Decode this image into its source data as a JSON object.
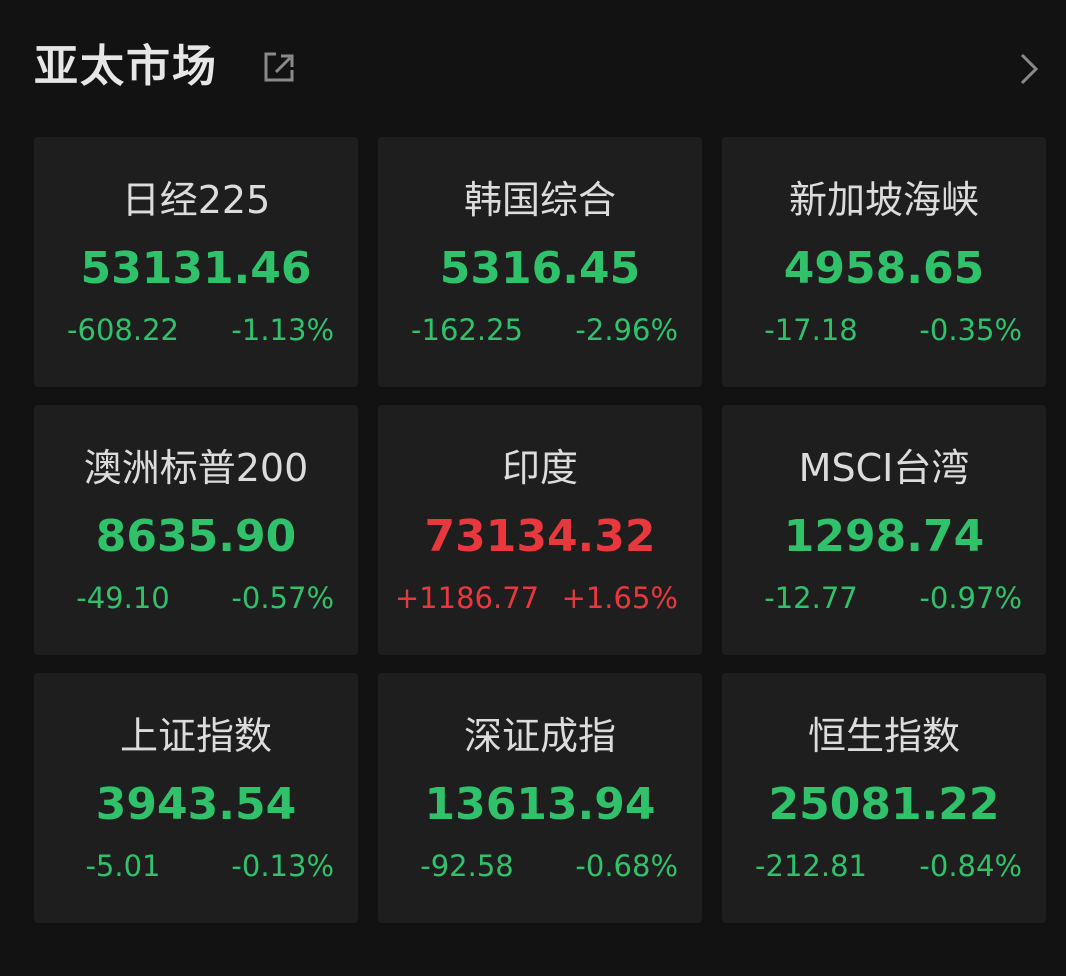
{
  "header": {
    "title": "亚太市场"
  },
  "cards": [
    {
      "name": "日经225",
      "price": "53131.46",
      "change": "-608.22",
      "percent": "-1.13%",
      "color": "#2fc26a"
    },
    {
      "name": "韩国综合",
      "price": "5316.45",
      "change": "-162.25",
      "percent": "-2.96%",
      "color": "#2fc26a"
    },
    {
      "name": "新加坡海峡",
      "price": "4958.65",
      "change": "-17.18",
      "percent": "-0.35%",
      "color": "#2fc26a"
    },
    {
      "name": "澳洲标普200",
      "price": "8635.90",
      "change": "-49.10",
      "percent": "-0.57%",
      "color": "#2fc26a"
    },
    {
      "name": "印度",
      "price": "73134.32",
      "change": "+1186.77",
      "percent": "+1.65%",
      "color": "#e8383d"
    },
    {
      "name": "MSCI台湾",
      "price": "1298.74",
      "change": "-12.77",
      "percent": "-0.97%",
      "color": "#2fc26a"
    },
    {
      "name": "上证指数",
      "price": "3943.54",
      "change": "-5.01",
      "percent": "-0.13%",
      "color": "#2fc26a"
    },
    {
      "name": "深证成指",
      "price": "13613.94",
      "change": "-92.58",
      "percent": "-0.68%",
      "color": "#2fc26a"
    },
    {
      "name": "恒生指数",
      "price": "25081.22",
      "change": "-212.81",
      "percent": "-0.84%",
      "color": "#2fc26a"
    }
  ]
}
